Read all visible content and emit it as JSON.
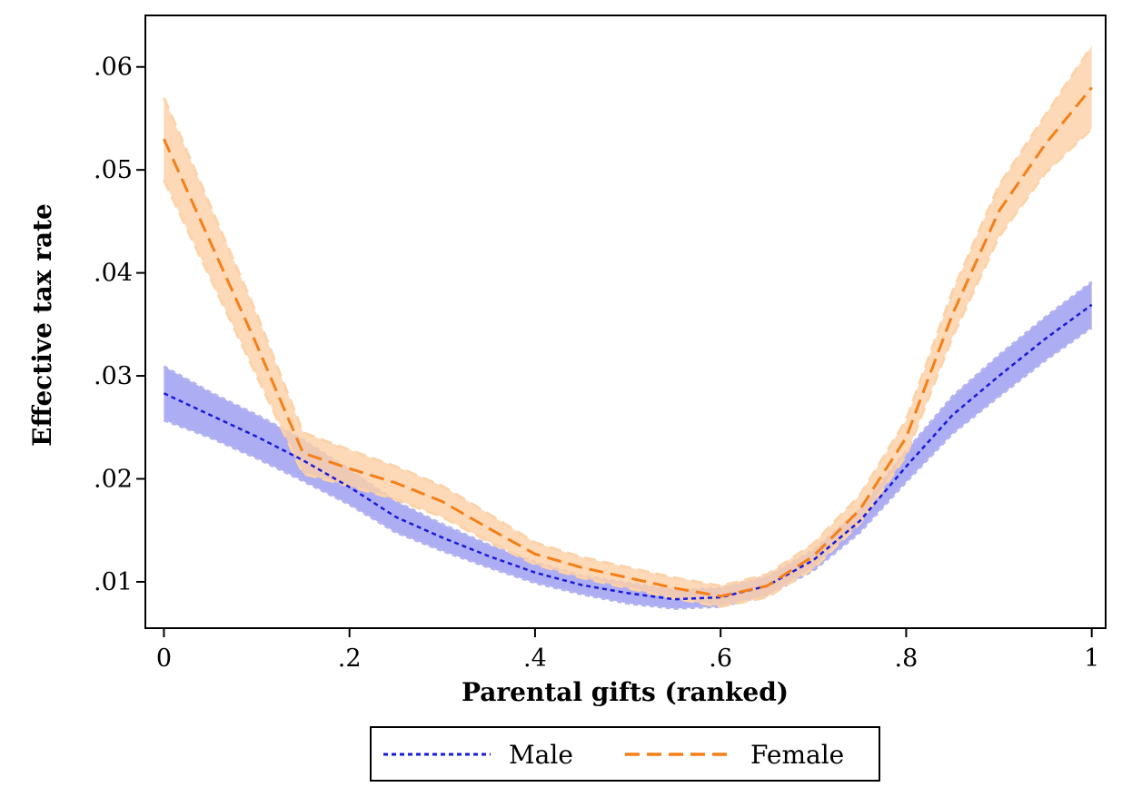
{
  "chart_data": {
    "type": "line",
    "title": "",
    "xlabel": "Parental gifts (ranked)",
    "ylabel": "Effective tax rate",
    "xlim": [
      -0.02,
      1.015
    ],
    "ylim": [
      0.0055,
      0.065
    ],
    "x_ticks": [
      0,
      0.2,
      0.4,
      0.6,
      0.8,
      1.0
    ],
    "x_tick_labels": [
      "0",
      ".2",
      ".4",
      ".6",
      ".8",
      "1"
    ],
    "y_ticks": [
      0.01,
      0.02,
      0.03,
      0.04,
      0.05,
      0.06
    ],
    "y_tick_labels": [
      ".01",
      ".02",
      ".03",
      ".04",
      ".05",
      ".06"
    ],
    "grid": false,
    "legend_position": "bottom",
    "series": [
      {
        "name": "Male",
        "color": "#1a1adb",
        "band_color": "#a9a9f2",
        "band_edge_color": "#b3b3f0",
        "line_style": "dotted",
        "x": [
          0,
          0.05,
          0.1,
          0.15,
          0.2,
          0.25,
          0.3,
          0.35,
          0.4,
          0.45,
          0.5,
          0.55,
          0.6,
          0.65,
          0.7,
          0.75,
          0.8,
          0.85,
          0.9,
          0.95,
          1.0
        ],
        "y": [
          0.0283,
          0.0262,
          0.0241,
          0.0218,
          0.0192,
          0.0163,
          0.0143,
          0.0125,
          0.0109,
          0.0097,
          0.0089,
          0.0083,
          0.0085,
          0.0096,
          0.0121,
          0.0159,
          0.0212,
          0.0262,
          0.03,
          0.0336,
          0.0369
        ],
        "lower": [
          0.0257,
          0.024,
          0.022,
          0.0198,
          0.0175,
          0.0148,
          0.013,
          0.0114,
          0.0099,
          0.0088,
          0.0079,
          0.0074,
          0.0076,
          0.0087,
          0.0111,
          0.0148,
          0.0197,
          0.0244,
          0.028,
          0.0315,
          0.0347
        ],
        "upper": [
          0.0309,
          0.0284,
          0.0262,
          0.0238,
          0.0209,
          0.0178,
          0.0156,
          0.0136,
          0.0119,
          0.0106,
          0.0099,
          0.0092,
          0.0094,
          0.0105,
          0.0131,
          0.017,
          0.0227,
          0.028,
          0.032,
          0.0357,
          0.0391
        ]
      },
      {
        "name": "Female",
        "color": "#f57f17",
        "band_color": "#fdd0a6",
        "band_edge_color": "#fcd2a8",
        "line_style": "dashed",
        "x": [
          0,
          0.05,
          0.1,
          0.15,
          0.2,
          0.25,
          0.3,
          0.35,
          0.4,
          0.45,
          0.5,
          0.55,
          0.6,
          0.65,
          0.7,
          0.75,
          0.8,
          0.85,
          0.9,
          0.95,
          1.0
        ],
        "y": [
          0.053,
          0.043,
          0.033,
          0.0225,
          0.021,
          0.0196,
          0.0178,
          0.0152,
          0.0127,
          0.0114,
          0.0104,
          0.0094,
          0.0086,
          0.0096,
          0.0125,
          0.017,
          0.024,
          0.036,
          0.046,
          0.0525,
          0.058
        ],
        "lower": [
          0.049,
          0.0395,
          0.03,
          0.0205,
          0.0193,
          0.018,
          0.0163,
          0.0139,
          0.0117,
          0.0104,
          0.0094,
          0.0084,
          0.0076,
          0.0085,
          0.0113,
          0.0157,
          0.0223,
          0.0338,
          0.0435,
          0.0497,
          0.054
        ],
        "upper": [
          0.057,
          0.0465,
          0.036,
          0.0245,
          0.0228,
          0.0212,
          0.0193,
          0.0166,
          0.0138,
          0.0124,
          0.0114,
          0.0104,
          0.0096,
          0.0107,
          0.0137,
          0.0184,
          0.0257,
          0.0382,
          0.0485,
          0.0553,
          0.062
        ]
      }
    ]
  }
}
